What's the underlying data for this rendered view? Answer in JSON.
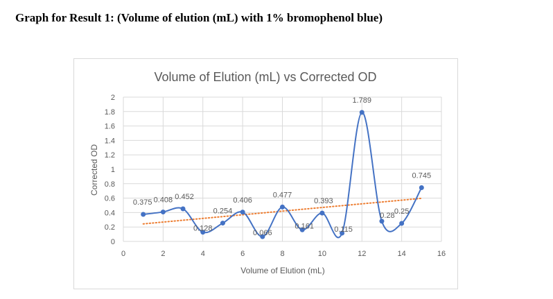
{
  "document": {
    "heading": "Graph for Result 1: (Volume of elution (mL) with 1% bromophenol blue)"
  },
  "chart_data": {
    "type": "scatter",
    "title": "Volume of Elution (mL) vs Corrected OD",
    "xlabel": "Volume of Elution (mL)",
    "ylabel": "Corrected OD",
    "xlim": [
      0,
      16
    ],
    "ylim": [
      0,
      2
    ],
    "x_ticks": [
      "0",
      "2",
      "4",
      "6",
      "8",
      "10",
      "12",
      "14",
      "16"
    ],
    "y_ticks": [
      "0",
      "0.2",
      "0.4",
      "0.6",
      "0.8",
      "1",
      "1.2",
      "1.4",
      "1.6",
      "1.8",
      "2"
    ],
    "grid": true,
    "smoothed_line": true,
    "trendline": "linear",
    "colors": {
      "series": "#4472c4",
      "trendline": "#ed7d31",
      "grid": "#d9d9d9",
      "text": "#595959"
    },
    "series": [
      {
        "x": [
          1,
          2,
          3,
          4,
          5,
          6,
          7,
          8,
          9,
          10,
          11,
          12,
          13,
          14,
          15
        ],
        "values": [
          0.375,
          0.408,
          0.452,
          0.128,
          0.254,
          0.406,
          0.066,
          0.477,
          0.161,
          0.393,
          0.115,
          1.789,
          0.28,
          0.25,
          0.745
        ],
        "labels": [
          "0.375",
          "0.408",
          "0.452",
          "0.128",
          "0.254",
          "0.406",
          "0.066",
          "0.477",
          "0.161",
          "0.393",
          "0.115",
          "1.789",
          "0.28",
          "0.25",
          "0.745"
        ]
      }
    ]
  }
}
